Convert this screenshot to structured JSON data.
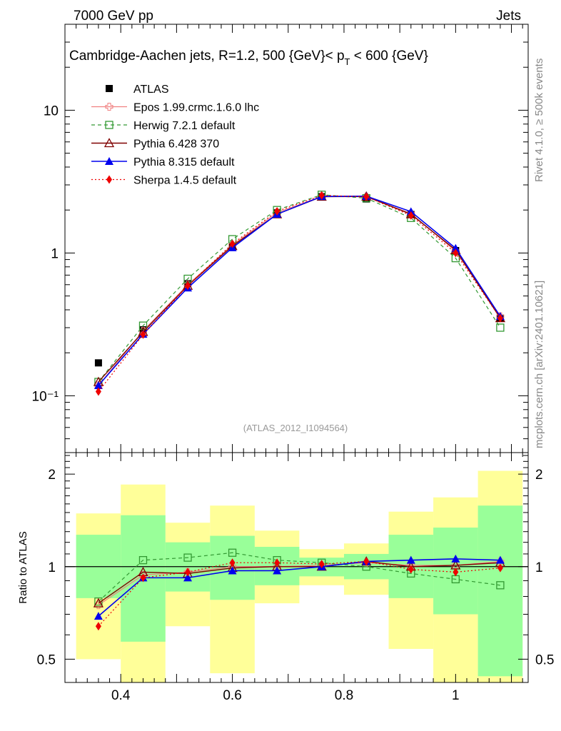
{
  "header": {
    "left": "7000 GeV pp",
    "right": "Jets",
    "side_top": "Rivet 4.1.0, ≥ 500k events",
    "side_bottom": "mcplots.cern.ch [arXiv:2401.10621]",
    "watermark": "(ATLAS_2012_I1094564)"
  },
  "colors": {
    "ATLAS": "#000000",
    "Epos": "#f08080",
    "Herwig": "#339933",
    "Pythia6": "#7f0000",
    "Pythia8": "#0000ee",
    "Sherpa": "#ee0000",
    "band_inner": "#99ff99",
    "band_outer": "#ffff99"
  },
  "chart_data": [
    {
      "type": "line",
      "panel": "main",
      "title": "Cambridge-Aachen jets, R=1.2,  500 {GeV}< p_T < 600 {GeV}",
      "title_main": "Cambridge-Aachen jets, R=1.2,  500 {GeV}< p",
      "title_sub": "T",
      "title_tail": " < 600 {GeV}",
      "yscale": "log",
      "xlim": [
        0.3,
        1.13
      ],
      "ylim": [
        0.04,
        40
      ],
      "x_ticks": [
        0.4,
        0.6,
        0.8,
        1.0
      ],
      "x_tick_labels": [
        "0.4",
        "0.6",
        "0.8",
        "1"
      ],
      "y_tick_labels": [
        "10⁻¹",
        "1",
        "10"
      ],
      "x": [
        0.36,
        0.44,
        0.52,
        0.6,
        0.68,
        0.76,
        0.84,
        0.92,
        1.0,
        1.08
      ],
      "series": [
        {
          "key": "ATLAS",
          "name": "ATLAS",
          "marker": "filled-square",
          "values": [
            0.17,
            0.29,
            0.61,
            1.12,
            1.91,
            2.48,
            2.39,
            1.86,
            1.04,
            0.35
          ]
        },
        {
          "key": "Epos",
          "name": "Epos 1.99.crmc.1.6.0 lhc",
          "marker": "open-cross",
          "values": [
            0.118,
            0.285,
            0.6,
            1.14,
            1.92,
            2.49,
            2.47,
            1.89,
            1.03,
            0.36
          ]
        },
        {
          "key": "Herwig",
          "name": "Herwig 7.2.1 default",
          "marker": "open-square",
          "values": [
            0.125,
            0.31,
            0.66,
            1.25,
            2.0,
            2.56,
            2.42,
            1.76,
            0.92,
            0.3
          ]
        },
        {
          "key": "Pythia6",
          "name": "Pythia 6.428 370",
          "marker": "open-triangle",
          "values": [
            0.125,
            0.28,
            0.59,
            1.12,
            1.87,
            2.48,
            2.49,
            1.87,
            1.05,
            0.35
          ]
        },
        {
          "key": "Pythia8",
          "name": "Pythia 8.315 default",
          "marker": "filled-triangle",
          "values": [
            0.118,
            0.27,
            0.57,
            1.09,
            1.87,
            2.49,
            2.5,
            1.95,
            1.08,
            0.36
          ]
        },
        {
          "key": "Sherpa",
          "name": "Sherpa 1.4.5 default",
          "marker": "filled-diamond",
          "values": [
            0.107,
            0.268,
            0.59,
            1.16,
            1.96,
            2.53,
            2.48,
            1.83,
            1.0,
            0.35
          ]
        }
      ]
    },
    {
      "type": "line",
      "panel": "ratio",
      "ylabel": "Ratio to ATLAS",
      "yscale": "log",
      "ylim": [
        0.42,
        2.35
      ],
      "y_ticks": [
        0.5,
        1,
        2
      ],
      "y_tick_labels": [
        "0.5",
        "1",
        "2"
      ],
      "bin_edges": [
        0.32,
        0.4,
        0.48,
        0.56,
        0.64,
        0.72,
        0.8,
        0.88,
        0.96,
        1.04,
        1.12
      ],
      "band_inner": [
        [
          0.79,
          1.27
        ],
        [
          0.57,
          1.47
        ],
        [
          0.83,
          1.2
        ],
        [
          0.78,
          1.26
        ],
        [
          0.87,
          1.16
        ],
        [
          0.93,
          1.07
        ],
        [
          0.91,
          1.1
        ],
        [
          0.79,
          1.27
        ],
        [
          0.7,
          1.34
        ],
        [
          0.44,
          1.58
        ]
      ],
      "band_outer": [
        [
          0.5,
          1.49
        ],
        [
          0.35,
          1.85
        ],
        [
          0.64,
          1.39
        ],
        [
          0.45,
          1.58
        ],
        [
          0.76,
          1.31
        ],
        [
          0.87,
          1.14
        ],
        [
          0.81,
          1.19
        ],
        [
          0.54,
          1.51
        ],
        [
          0.35,
          1.68
        ],
        [
          0.35,
          2.05
        ]
      ],
      "x": [
        0.36,
        0.44,
        0.52,
        0.6,
        0.68,
        0.76,
        0.84,
        0.92,
        1.0,
        1.08
      ],
      "series": [
        {
          "key": "Epos",
          "name": "Epos 1.99.crmc.1.6.0 lhc",
          "values": [
            0.75,
            0.94,
            0.96,
            1.0,
            1.0,
            1.01,
            1.03,
            1.01,
            1.01,
            1.04
          ]
        },
        {
          "key": "Herwig",
          "name": "Herwig 7.2.1 default",
          "values": [
            0.77,
            1.05,
            1.07,
            1.11,
            1.05,
            1.03,
            1.0,
            0.95,
            0.91,
            0.87
          ]
        },
        {
          "key": "Pythia6",
          "name": "Pythia 6.428 370",
          "values": [
            0.76,
            0.96,
            0.95,
            0.99,
            1.0,
            1.0,
            1.04,
            1.0,
            1.01,
            1.03
          ]
        },
        {
          "key": "Pythia8",
          "name": "Pythia 8.315 default",
          "values": [
            0.69,
            0.92,
            0.92,
            0.97,
            0.97,
            1.0,
            1.04,
            1.05,
            1.06,
            1.05
          ]
        },
        {
          "key": "Sherpa",
          "name": "Sherpa 1.4.5 default",
          "values": [
            0.64,
            0.92,
            0.96,
            1.03,
            1.03,
            1.02,
            1.04,
            0.98,
            0.96,
            0.99
          ]
        }
      ]
    }
  ]
}
